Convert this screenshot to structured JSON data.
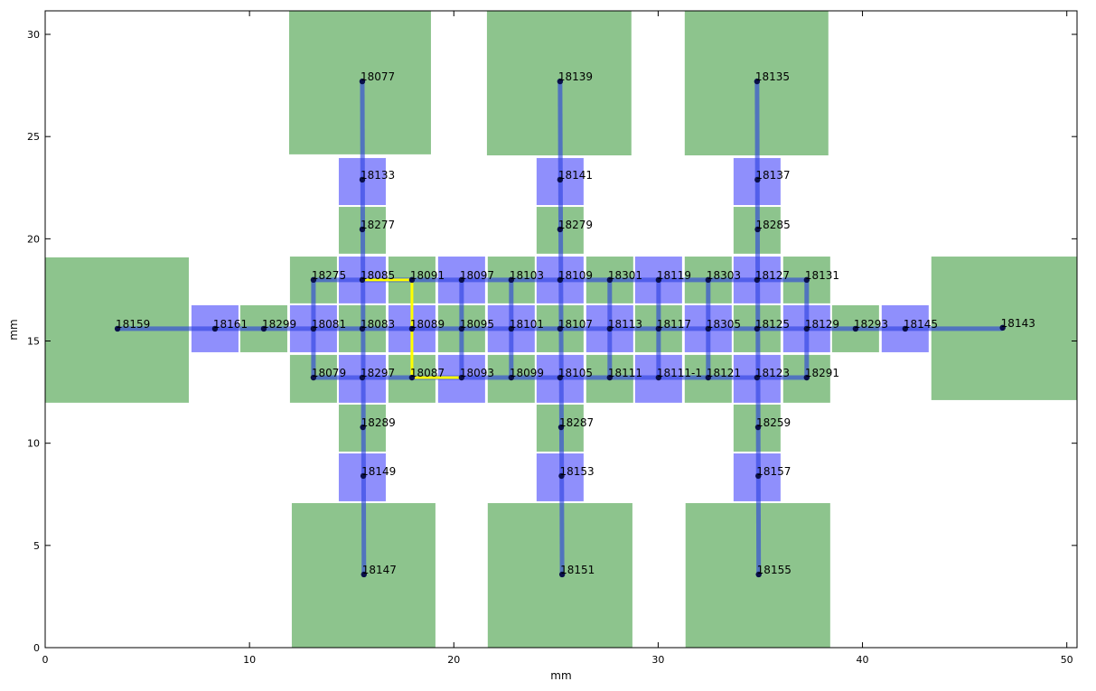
{
  "chart_data": {
    "type": "layout",
    "xlabel": "mm",
    "ylabel": "mm",
    "xlim": [
      0,
      50.5
    ],
    "ylim": [
      0,
      31.15
    ],
    "xticks": [
      0,
      10,
      20,
      30,
      40,
      50
    ],
    "yticks": [
      0,
      5,
      10,
      15,
      20,
      25,
      30
    ],
    "pads": [
      {
        "color": "#8dc48d",
        "rects": [
          [
            0,
            11.98,
            7.03,
            19.09
          ],
          [
            43.37,
            12.11,
            50.49,
            19.13
          ],
          [
            11.94,
            24.13,
            18.88,
            31.15
          ],
          [
            21.62,
            24.08,
            28.69,
            31.15
          ],
          [
            31.3,
            24.08,
            38.33,
            31.15
          ],
          [
            12.07,
            0,
            19.1,
            7.07
          ],
          [
            21.66,
            0,
            28.74,
            7.07
          ],
          [
            31.34,
            0,
            38.42,
            7.07
          ],
          [
            11.98,
            16.84,
            14.28,
            19.13
          ],
          [
            16.8,
            16.84,
            19.1,
            19.13
          ],
          [
            21.66,
            16.84,
            23.96,
            19.13
          ],
          [
            26.48,
            16.84,
            28.78,
            19.13
          ],
          [
            31.3,
            16.84,
            33.6,
            19.13
          ],
          [
            36.12,
            16.84,
            38.42,
            19.13
          ],
          [
            9.55,
            14.45,
            11.85,
            16.75
          ],
          [
            14.37,
            14.45,
            16.67,
            16.75
          ],
          [
            19.23,
            14.45,
            21.53,
            16.75
          ],
          [
            24.05,
            14.45,
            26.35,
            16.75
          ],
          [
            28.87,
            14.45,
            31.17,
            16.75
          ],
          [
            33.69,
            14.45,
            35.99,
            16.75
          ],
          [
            38.51,
            14.45,
            40.81,
            16.75
          ],
          [
            11.98,
            11.98,
            14.28,
            14.32
          ],
          [
            16.8,
            11.98,
            19.1,
            14.32
          ],
          [
            21.66,
            11.98,
            23.96,
            14.32
          ],
          [
            26.48,
            11.98,
            28.78,
            14.32
          ],
          [
            31.3,
            11.98,
            33.6,
            14.32
          ],
          [
            36.12,
            11.98,
            38.42,
            14.32
          ],
          [
            14.37,
            19.27,
            16.67,
            21.56
          ],
          [
            24.05,
            19.27,
            26.35,
            21.56
          ],
          [
            33.69,
            19.27,
            35.99,
            21.56
          ],
          [
            14.37,
            9.59,
            16.67,
            11.89
          ],
          [
            24.05,
            9.59,
            26.35,
            11.89
          ],
          [
            33.69,
            9.59,
            35.99,
            11.89
          ]
        ]
      },
      {
        "color": "#8f8ffc",
        "rects": [
          [
            14.37,
            16.84,
            16.67,
            19.13
          ],
          [
            19.23,
            16.84,
            21.53,
            19.13
          ],
          [
            24.05,
            16.84,
            26.35,
            19.13
          ],
          [
            28.87,
            16.84,
            31.17,
            19.13
          ],
          [
            33.69,
            16.84,
            35.99,
            19.13
          ],
          [
            7.16,
            14.45,
            9.46,
            16.75
          ],
          [
            11.98,
            14.45,
            14.28,
            16.75
          ],
          [
            16.8,
            14.45,
            19.1,
            16.75
          ],
          [
            21.66,
            14.45,
            23.96,
            16.75
          ],
          [
            26.48,
            14.45,
            28.78,
            16.75
          ],
          [
            31.3,
            14.45,
            33.6,
            16.75
          ],
          [
            36.12,
            14.45,
            38.42,
            16.75
          ],
          [
            40.94,
            14.45,
            43.24,
            16.75
          ],
          [
            14.37,
            11.98,
            16.67,
            14.32
          ],
          [
            19.23,
            11.98,
            21.53,
            14.32
          ],
          [
            24.05,
            11.98,
            26.35,
            14.32
          ],
          [
            28.87,
            11.98,
            31.17,
            14.32
          ],
          [
            33.69,
            11.98,
            35.99,
            14.32
          ],
          [
            14.37,
            21.65,
            16.67,
            23.95
          ],
          [
            24.05,
            21.65,
            26.35,
            23.95
          ],
          [
            33.69,
            21.65,
            35.99,
            23.95
          ],
          [
            14.37,
            7.16,
            16.67,
            9.5
          ],
          [
            24.05,
            7.16,
            26.35,
            9.5
          ],
          [
            33.69,
            7.16,
            35.99,
            9.5
          ]
        ]
      }
    ],
    "edge_color": "#2a3fe0",
    "edges": [
      {
        "x": [
          3.54,
          46.86
        ],
        "y": [
          15.6,
          15.6
        ]
      },
      {
        "x": [
          13.13,
          37.27
        ],
        "y": [
          17.99,
          17.99
        ]
      },
      {
        "x": [
          13.13,
          37.27
        ],
        "y": [
          13.21,
          13.21
        ]
      },
      {
        "x": [
          13.13,
          13.13
        ],
        "y": [
          13.21,
          17.99
        ]
      },
      {
        "x": [
          20.38,
          20.38
        ],
        "y": [
          13.21,
          17.99
        ]
      },
      {
        "x": [
          22.81,
          22.81
        ],
        "y": [
          13.21,
          17.99
        ]
      },
      {
        "x": [
          27.63,
          27.63
        ],
        "y": [
          13.21,
          17.99
        ]
      },
      {
        "x": [
          30.02,
          30.02
        ],
        "y": [
          13.21,
          17.99
        ]
      },
      {
        "x": [
          32.45,
          32.45
        ],
        "y": [
          13.21,
          17.99
        ]
      },
      {
        "x": [
          37.27,
          37.27
        ],
        "y": [
          13.21,
          17.99
        ]
      },
      {
        "x": [
          15.52,
          15.6
        ],
        "y": [
          27.7,
          3.58
        ]
      },
      {
        "x": [
          25.2,
          25.3
        ],
        "y": [
          27.7,
          3.58
        ]
      },
      {
        "x": [
          34.84,
          34.92
        ],
        "y": [
          27.7,
          3.58
        ]
      }
    ],
    "path": {
      "color": "#ffff00",
      "x": [
        15.52,
        17.95,
        17.95,
        20.38
      ],
      "y": [
        17.99,
        17.99,
        13.21,
        13.21
      ]
    },
    "nodes": {
      "labels": [
        "18275",
        "18085",
        "18091",
        "18097",
        "18103",
        "18109",
        "18301",
        "18119",
        "18303",
        "18127",
        "18131",
        "18159",
        "18161",
        "18299",
        "18081",
        "18083",
        "18089",
        "18095",
        "18101",
        "18107",
        "18113",
        "18117",
        "18305",
        "18125",
        "18129",
        "18293",
        "18145",
        "18143",
        "18079",
        "18297",
        "18087",
        "18093",
        "18099",
        "18105",
        "18111",
        "18111-1",
        "18121",
        "18123",
        "18291",
        "18077",
        "18133",
        "18277",
        "18289",
        "18149",
        "18147",
        "18139",
        "18141",
        "18279",
        "18287",
        "18153",
        "18151",
        "18135",
        "18137",
        "18285",
        "18259",
        "18157",
        "18155"
      ],
      "x": [
        13.13,
        15.52,
        17.95,
        20.38,
        22.81,
        25.2,
        27.63,
        30.02,
        32.45,
        34.84,
        37.27,
        3.54,
        8.31,
        10.7,
        13.13,
        15.52,
        17.95,
        20.38,
        22.81,
        25.2,
        27.63,
        30.02,
        32.45,
        34.84,
        37.27,
        39.66,
        42.09,
        46.86,
        13.13,
        15.52,
        17.95,
        20.38,
        22.81,
        25.2,
        27.63,
        30.02,
        32.45,
        34.84,
        37.27,
        15.52,
        15.52,
        15.52,
        15.55,
        15.57,
        15.6,
        25.2,
        25.2,
        25.2,
        25.25,
        25.27,
        25.3,
        34.84,
        34.86,
        34.87,
        34.89,
        34.9,
        34.92
      ],
      "y": [
        17.99,
        17.99,
        17.99,
        17.99,
        17.99,
        17.99,
        17.99,
        17.99,
        17.99,
        17.99,
        17.99,
        15.6,
        15.6,
        15.6,
        15.6,
        15.6,
        15.6,
        15.6,
        15.6,
        15.6,
        15.6,
        15.6,
        15.6,
        15.6,
        15.6,
        15.6,
        15.6,
        15.65,
        13.21,
        13.21,
        13.21,
        13.21,
        13.21,
        13.21,
        13.21,
        13.21,
        13.21,
        13.21,
        13.21,
        27.7,
        22.89,
        20.46,
        10.78,
        8.4,
        3.58,
        27.7,
        22.89,
        20.46,
        10.78,
        8.4,
        3.58,
        27.7,
        22.89,
        20.46,
        10.78,
        8.4,
        3.58
      ],
      "color": "#0a0f4a"
    }
  }
}
